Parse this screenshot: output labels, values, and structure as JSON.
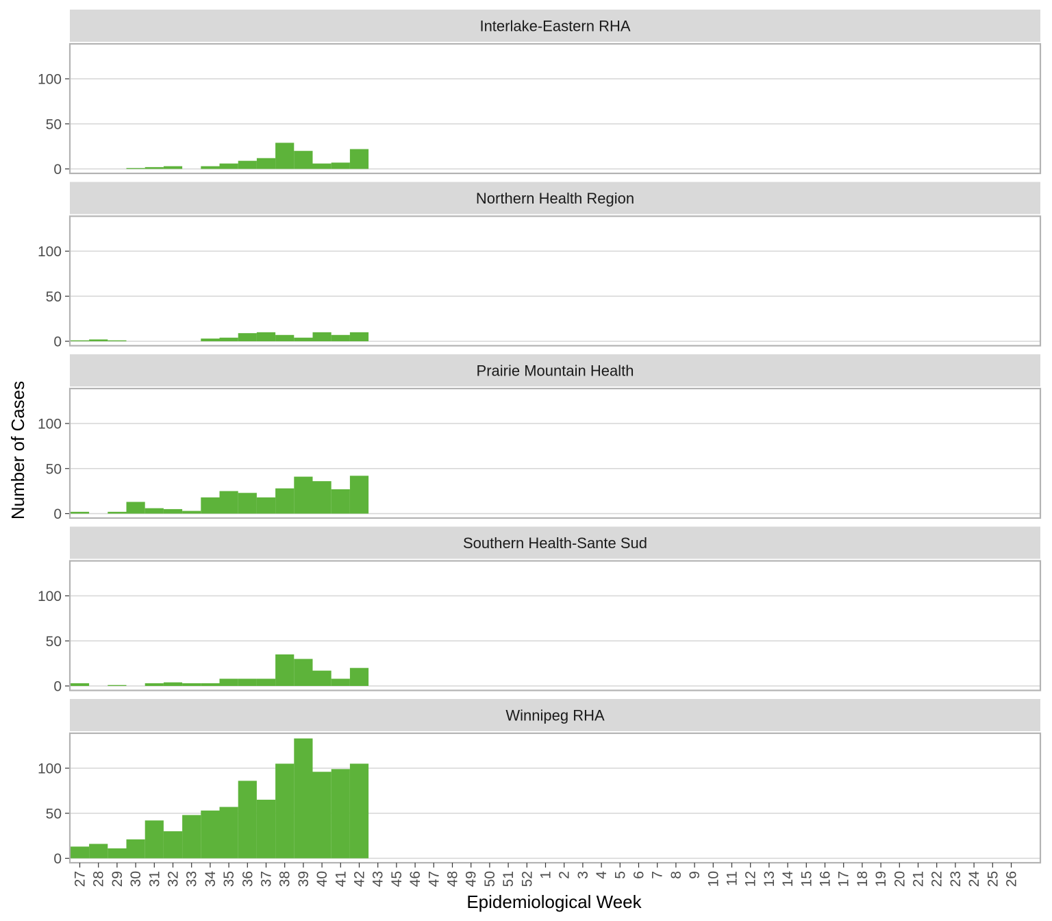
{
  "chart_data": {
    "type": "bar",
    "xlabel": "Epidemiological Week",
    "ylabel": "Number of Cases",
    "ylim": [
      0,
      140
    ],
    "yticks": [
      0,
      50,
      100
    ],
    "grid": "horizontal",
    "bar_color": "#5db33a",
    "categories": [
      "27",
      "28",
      "29",
      "30",
      "31",
      "32",
      "33",
      "34",
      "35",
      "36",
      "37",
      "38",
      "39",
      "40",
      "41",
      "42",
      "43",
      "45",
      "46",
      "47",
      "48",
      "49",
      "50",
      "51",
      "52",
      "1",
      "2",
      "3",
      "4",
      "5",
      "6",
      "7",
      "8",
      "9",
      "10",
      "11",
      "12",
      "13",
      "14",
      "15",
      "16",
      "17",
      "18",
      "19",
      "20",
      "21",
      "22",
      "23",
      "24",
      "25",
      "26"
    ],
    "panels": [
      {
        "name": "Interlake-Eastern RHA",
        "values": [
          0,
          0,
          0,
          1,
          2,
          3,
          0,
          3,
          6,
          9,
          12,
          29,
          20,
          6,
          7,
          22
        ]
      },
      {
        "name": "Northern Health Region",
        "values": [
          1,
          2,
          1,
          0,
          0,
          0,
          0,
          3,
          4,
          9,
          10,
          7,
          4,
          10,
          7,
          10
        ]
      },
      {
        "name": "Prairie Mountain Health",
        "values": [
          2,
          0,
          2,
          13,
          6,
          5,
          3,
          18,
          25,
          23,
          18,
          28,
          41,
          36,
          27,
          42
        ]
      },
      {
        "name": "Southern Health-Sante Sud",
        "values": [
          3,
          0,
          1,
          0,
          3,
          4,
          3,
          3,
          8,
          8,
          8,
          35,
          30,
          17,
          8,
          20
        ]
      },
      {
        "name": "Winnipeg RHA",
        "values": [
          13,
          16,
          11,
          21,
          42,
          30,
          48,
          53,
          57,
          86,
          65,
          105,
          133,
          96,
          99,
          105
        ]
      }
    ]
  }
}
